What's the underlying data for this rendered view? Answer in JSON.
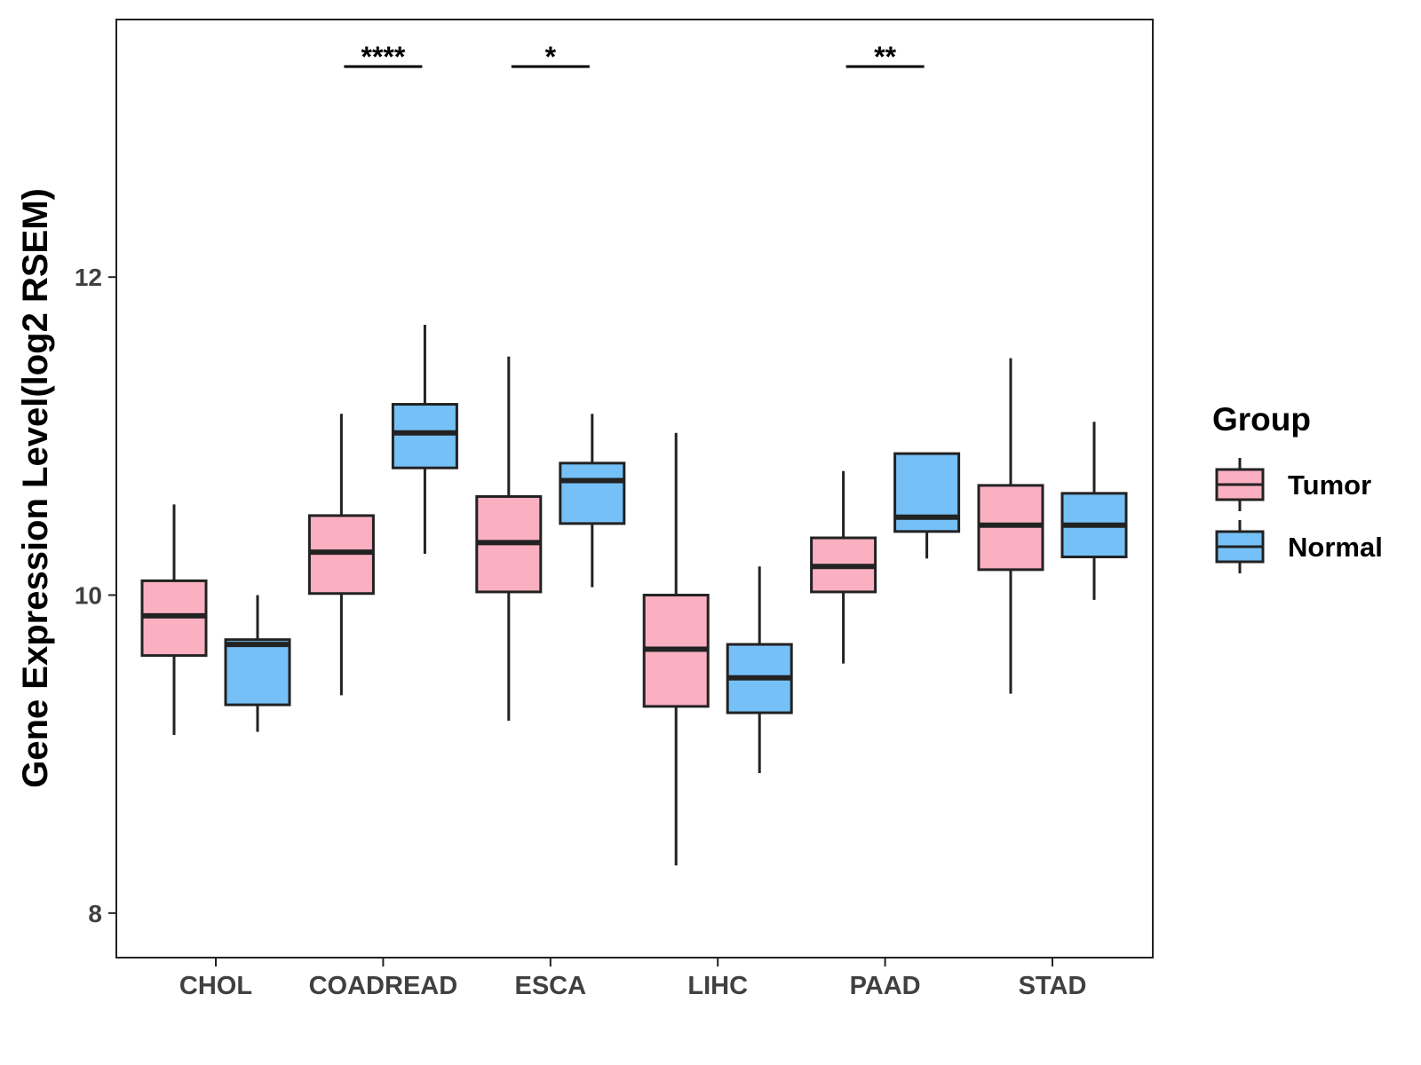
{
  "chart_data": {
    "type": "boxplot",
    "ylabel": "Gene Expression Level(log2 RSEM)",
    "xlabel": "",
    "ylim": [
      7.72,
      13.62
    ],
    "yticks": [
      8,
      10,
      12
    ],
    "categories": [
      "CHOL",
      "COADREAD",
      "ESCA",
      "LIHC",
      "PAAD",
      "STAD"
    ],
    "legend": {
      "title": "Group",
      "position": "right",
      "entries": [
        {
          "name": "Tumor",
          "color": "#FBB0C1"
        },
        {
          "name": "Normal",
          "color": "#75C1F7"
        }
      ]
    },
    "series": [
      {
        "name": "Tumor",
        "color": "#FBB0C1",
        "boxes": [
          {
            "category": "CHOL",
            "min": 9.12,
            "q1": 9.62,
            "median": 9.87,
            "q3": 10.09,
            "max": 10.57
          },
          {
            "category": "COADREAD",
            "min": 9.37,
            "q1": 10.01,
            "median": 10.27,
            "q3": 10.5,
            "max": 11.14
          },
          {
            "category": "ESCA",
            "min": 9.21,
            "q1": 10.02,
            "median": 10.33,
            "q3": 10.62,
            "max": 11.5
          },
          {
            "category": "LIHC",
            "min": 8.3,
            "q1": 9.3,
            "median": 9.66,
            "q3": 10.0,
            "max": 11.02
          },
          {
            "category": "PAAD",
            "min": 9.57,
            "q1": 10.02,
            "median": 10.18,
            "q3": 10.36,
            "max": 10.78
          },
          {
            "category": "STAD",
            "min": 9.38,
            "q1": 10.16,
            "median": 10.44,
            "q3": 10.69,
            "max": 11.49
          }
        ]
      },
      {
        "name": "Normal",
        "color": "#75C1F7",
        "boxes": [
          {
            "category": "CHOL",
            "min": 9.14,
            "q1": 9.31,
            "median": 9.69,
            "q3": 9.72,
            "max": 10.0
          },
          {
            "category": "COADREAD",
            "min": 10.26,
            "q1": 10.8,
            "median": 11.02,
            "q3": 11.2,
            "max": 11.7
          },
          {
            "category": "ESCA",
            "min": 10.05,
            "q1": 10.45,
            "median": 10.72,
            "q3": 10.83,
            "max": 11.14
          },
          {
            "category": "LIHC",
            "min": 8.88,
            "q1": 9.26,
            "median": 9.48,
            "q3": 9.69,
            "max": 10.18
          },
          {
            "category": "PAAD",
            "min": 10.23,
            "q1": 10.4,
            "median": 10.49,
            "q3": 10.89,
            "max": 10.89
          },
          {
            "category": "STAD",
            "min": 9.97,
            "q1": 10.24,
            "median": 10.44,
            "q3": 10.64,
            "max": 11.09
          }
        ]
      }
    ],
    "annotations": [
      {
        "category": "COADREAD",
        "label": "****"
      },
      {
        "category": "ESCA",
        "label": "*"
      },
      {
        "category": "PAAD",
        "label": "**"
      }
    ]
  }
}
